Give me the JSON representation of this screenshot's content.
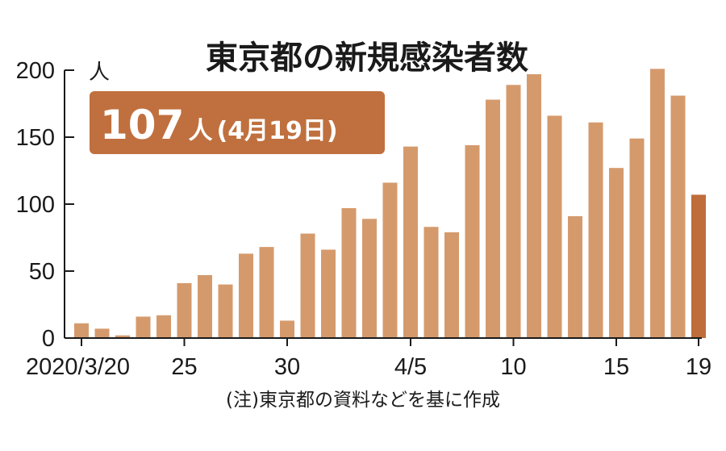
{
  "chart_data": {
    "type": "bar",
    "title": "東京都の新規感染者数",
    "ylabel": "人",
    "ylim": [
      0,
      200
    ],
    "yticks": [
      0,
      50,
      100,
      150,
      200
    ],
    "categories": [
      "3/20",
      "3/21",
      "3/22",
      "3/23",
      "3/24",
      "3/25",
      "3/26",
      "3/27",
      "3/28",
      "3/29",
      "3/30",
      "3/31",
      "4/1",
      "4/2",
      "4/3",
      "4/4",
      "4/5",
      "4/6",
      "4/7",
      "4/8",
      "4/9",
      "4/10",
      "4/11",
      "4/12",
      "4/13",
      "4/14",
      "4/15",
      "4/16",
      "4/17",
      "4/18",
      "4/19"
    ],
    "x_tick_labels": [
      {
        "index": 0,
        "label": "2020/3/20"
      },
      {
        "index": 5,
        "label": "25"
      },
      {
        "index": 10,
        "label": "30"
      },
      {
        "index": 16,
        "label": "4/5"
      },
      {
        "index": 21,
        "label": "10"
      },
      {
        "index": 26,
        "label": "15"
      },
      {
        "index": 30,
        "label": "19"
      }
    ],
    "values": [
      11,
      7,
      2,
      16,
      17,
      41,
      47,
      40,
      63,
      68,
      13,
      78,
      66,
      97,
      89,
      116,
      143,
      83,
      79,
      144,
      178,
      189,
      197,
      166,
      91,
      161,
      127,
      149,
      201,
      181,
      107
    ],
    "highlight_index": 30,
    "callout": {
      "value": "107",
      "unit": "人",
      "date": "(4月19日)"
    },
    "note": "(注)東京都の資料などを基に作成",
    "grid": false,
    "legend": "none"
  },
  "colors": {
    "bar": "#d59a6c",
    "highlight_bar": "#bf6d3a",
    "callout_bg": "#c0703e",
    "axis": "#1a1a1a"
  }
}
